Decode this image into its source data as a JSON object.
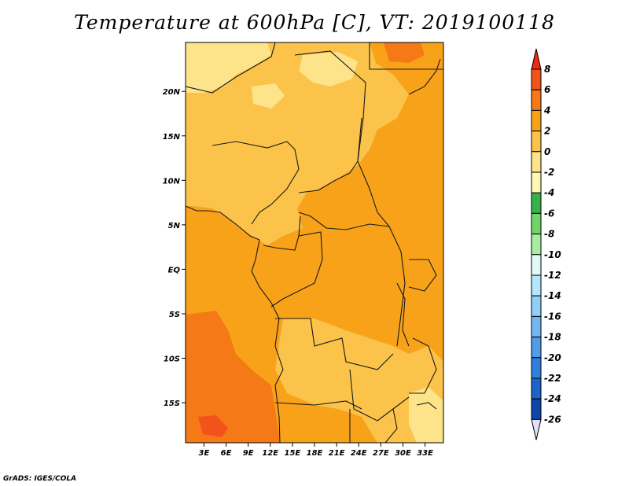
{
  "title": "Temperature at 600hPa [C], VT: 2019100118",
  "credit": "GrADS: IGES/COLA",
  "map": {
    "projection": "lat-lon",
    "lon_range": [
      0.5,
      35.5
    ],
    "lat_range": [
      -19.5,
      25.5
    ],
    "x_ticks": [
      {
        "lon": 3,
        "label": "3E"
      },
      {
        "lon": 6,
        "label": "6E"
      },
      {
        "lon": 9,
        "label": "9E"
      },
      {
        "lon": 12,
        "label": "12E"
      },
      {
        "lon": 15,
        "label": "15E"
      },
      {
        "lon": 18,
        "label": "18E"
      },
      {
        "lon": 21,
        "label": "21E"
      },
      {
        "lon": 24,
        "label": "24E"
      },
      {
        "lon": 27,
        "label": "27E"
      },
      {
        "lon": 30,
        "label": "30E"
      },
      {
        "lon": 33,
        "label": "33E"
      }
    ],
    "y_ticks": [
      {
        "lat": 20,
        "label": "20N"
      },
      {
        "lat": 15,
        "label": "15N"
      },
      {
        "lat": 10,
        "label": "10N"
      },
      {
        "lat": 5,
        "label": "5N"
      },
      {
        "lat": 0,
        "label": "EQ"
      },
      {
        "lat": -5,
        "label": "5S"
      },
      {
        "lat": -10,
        "label": "10S"
      },
      {
        "lat": -15,
        "label": "15S"
      }
    ],
    "colors": {
      "c_neg2_0": "#fde38a",
      "c_0_2": "#fbc34a",
      "c_2_4": "#f8a21a",
      "c_4_6": "#f57917",
      "c_6_8": "#f2531a",
      "border": "#1a1a1a"
    }
  },
  "colorbar": {
    "labels": [
      "8",
      "6",
      "4",
      "2",
      "0",
      "-2",
      "-4",
      "-6",
      "-8",
      "-10",
      "-12",
      "-14",
      "-16",
      "-18",
      "-20",
      "-22",
      "-24",
      "-26"
    ],
    "segments": [
      {
        "color": "#ee2a12"
      },
      {
        "color": "#f2531a"
      },
      {
        "color": "#f57917"
      },
      {
        "color": "#f8a21a"
      },
      {
        "color": "#fbc34a"
      },
      {
        "color": "#fde38a"
      },
      {
        "color": "#fff7b4"
      },
      {
        "color": "#35b34a"
      },
      {
        "color": "#6fd46a"
      },
      {
        "color": "#a8eca0"
      },
      {
        "color": "#e0faf6"
      },
      {
        "color": "#b6e6fb"
      },
      {
        "color": "#92cff6"
      },
      {
        "color": "#72b7f0"
      },
      {
        "color": "#4f9de8"
      },
      {
        "color": "#2f7fdc"
      },
      {
        "color": "#1d63c9"
      },
      {
        "color": "#0f44a8"
      },
      {
        "color": "#0a1f7a"
      }
    ],
    "under_color": "#e0e0f8"
  }
}
